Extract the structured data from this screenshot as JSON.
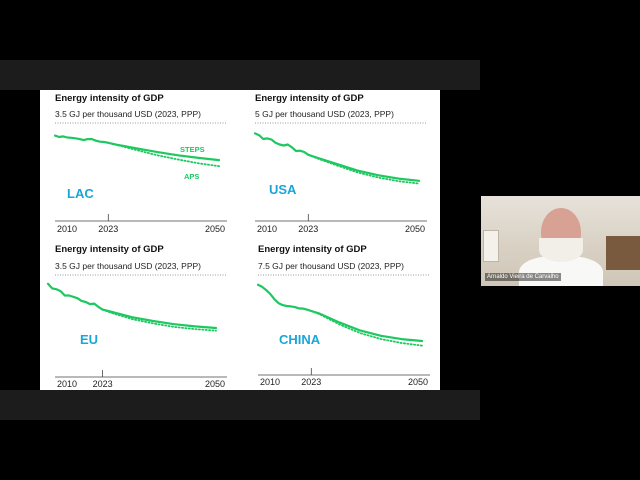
{
  "webcam": {
    "participant_name": "Arnaldo Vieira de Carvalho"
  },
  "colors": {
    "line": "#1ec860",
    "region_label": "#1aa6d8",
    "title": "#111111",
    "axis": "#444444"
  },
  "chart_data": [
    {
      "type": "line",
      "title": "Energy intensity of GDP",
      "subtitle": "3.5 GJ per thousand USD (2023, PPP)",
      "region": "LAC",
      "xlim": [
        2010,
        2050
      ],
      "ylim": [
        0,
        3.5
      ],
      "xticks": [
        2010,
        2023,
        2050
      ],
      "series_labels": [
        "STEPS",
        "APS"
      ],
      "series": [
        {
          "name": "STEPS",
          "style": "solid",
          "x": [
            2010,
            2011,
            2012,
            2013,
            2014,
            2015,
            2016,
            2017,
            2018,
            2019,
            2020,
            2021,
            2022,
            2023,
            2025,
            2030,
            2035,
            2040,
            2045,
            2050
          ],
          "y": [
            3.1,
            3.05,
            3.07,
            3.03,
            3.02,
            3.0,
            2.97,
            2.93,
            2.97,
            2.97,
            2.91,
            2.87,
            2.86,
            2.83,
            2.76,
            2.62,
            2.48,
            2.36,
            2.26,
            2.18
          ]
        },
        {
          "name": "APS",
          "style": "dotted",
          "x": [
            2023,
            2025,
            2030,
            2035,
            2040,
            2045,
            2050
          ],
          "y": [
            2.83,
            2.75,
            2.55,
            2.36,
            2.2,
            2.06,
            1.95
          ]
        }
      ]
    },
    {
      "type": "line",
      "title": "Energy intensity of GDP",
      "subtitle": "5 GJ per thousand USD (2023, PPP)",
      "region": "USA",
      "xlim": [
        2010,
        2050
      ],
      "ylim": [
        0,
        5
      ],
      "xticks": [
        2010,
        2023,
        2050
      ],
      "series": [
        {
          "name": "STEPS",
          "style": "solid",
          "x": [
            2010,
            2011,
            2012,
            2013,
            2014,
            2015,
            2016,
            2017,
            2018,
            2019,
            2020,
            2021,
            2022,
            2023,
            2025,
            2030,
            2035,
            2040,
            2045,
            2050
          ],
          "y": [
            4.55,
            4.45,
            4.25,
            4.28,
            4.22,
            4.05,
            3.95,
            3.9,
            3.95,
            3.8,
            3.6,
            3.62,
            3.55,
            3.4,
            3.25,
            2.9,
            2.55,
            2.3,
            2.12,
            2.0
          ]
        },
        {
          "name": "APS",
          "style": "dotted",
          "x": [
            2023,
            2025,
            2030,
            2035,
            2040,
            2045,
            2050
          ],
          "y": [
            3.4,
            3.22,
            2.82,
            2.45,
            2.18,
            1.98,
            1.85
          ]
        }
      ]
    },
    {
      "type": "line",
      "title": "Energy intensity of GDP",
      "subtitle": "3.5 GJ per thousand USD (2023, PPP)",
      "region": "EU",
      "xlim": [
        2010,
        2050
      ],
      "ylim": [
        0,
        3.5
      ],
      "xticks": [
        2010,
        2023,
        2050
      ],
      "series": [
        {
          "name": "STEPS",
          "style": "solid",
          "x": [
            2010,
            2011,
            2012,
            2013,
            2014,
            2015,
            2016,
            2017,
            2018,
            2019,
            2020,
            2021,
            2022,
            2023,
            2025,
            2030,
            2035,
            2040,
            2045,
            2050
          ],
          "y": [
            3.25,
            3.08,
            3.05,
            2.98,
            2.82,
            2.82,
            2.77,
            2.72,
            2.62,
            2.58,
            2.5,
            2.52,
            2.4,
            2.3,
            2.22,
            2.02,
            1.88,
            1.76,
            1.68,
            1.62
          ]
        },
        {
          "name": "APS",
          "style": "dotted",
          "x": [
            2023,
            2025,
            2030,
            2035,
            2040,
            2045,
            2050
          ],
          "y": [
            2.3,
            2.18,
            1.95,
            1.79,
            1.66,
            1.58,
            1.52
          ]
        }
      ]
    },
    {
      "type": "line",
      "title": "Energy intensity of GDP",
      "subtitle": "7.5 GJ per thousand USD (2023, PPP)",
      "region": "CHINA",
      "xlim": [
        2010,
        2050
      ],
      "ylim": [
        0,
        7.5
      ],
      "xticks": [
        2010,
        2023,
        2050
      ],
      "series": [
        {
          "name": "STEPS",
          "style": "solid",
          "x": [
            2010,
            2011,
            2012,
            2013,
            2014,
            2015,
            2016,
            2017,
            2018,
            2019,
            2020,
            2021,
            2022,
            2023,
            2025,
            2030,
            2035,
            2040,
            2045,
            2050
          ],
          "y": [
            6.9,
            6.75,
            6.5,
            6.2,
            5.8,
            5.5,
            5.35,
            5.28,
            5.25,
            5.2,
            5.1,
            5.08,
            5.0,
            4.9,
            4.7,
            4.0,
            3.4,
            3.0,
            2.75,
            2.6
          ]
        },
        {
          "name": "APS",
          "style": "dotted",
          "x": [
            2023,
            2025,
            2030,
            2035,
            2040,
            2045,
            2050
          ],
          "y": [
            4.9,
            4.65,
            3.85,
            3.2,
            2.75,
            2.45,
            2.25
          ]
        }
      ]
    }
  ]
}
